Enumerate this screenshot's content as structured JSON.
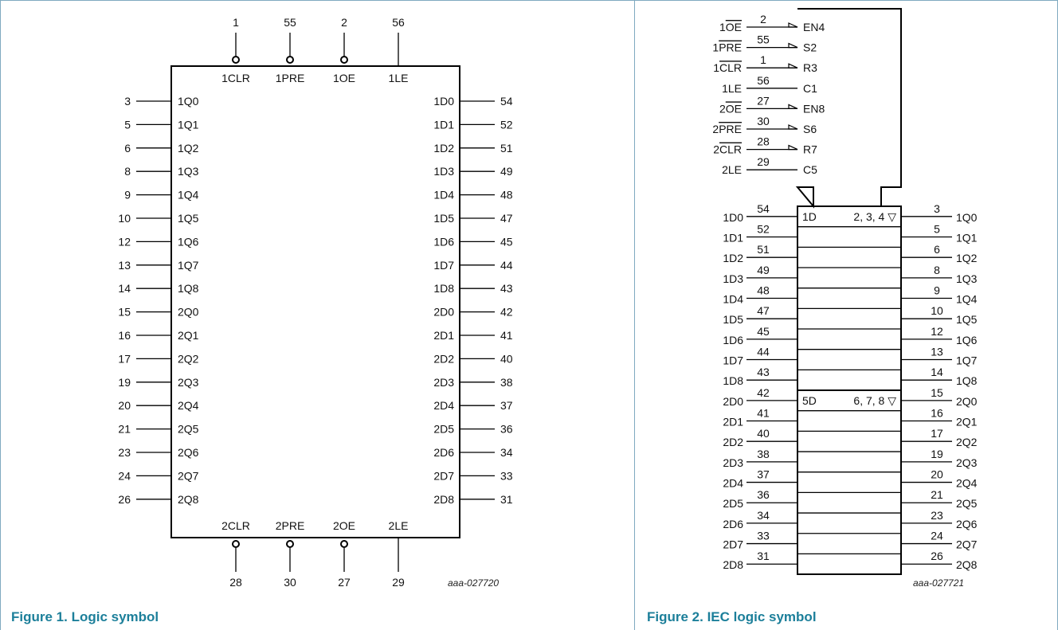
{
  "colors": {
    "caption": "#1c7f9a",
    "frame": "#7fa9c0",
    "line": "#000000"
  },
  "figure1": {
    "caption": "Figure 1.  Logic symbol",
    "code": "aaa-027720",
    "top_pins": [
      {
        "num": "1",
        "label": "1CLR",
        "bubble": true
      },
      {
        "num": "55",
        "label": "1PRE",
        "bubble": true
      },
      {
        "num": "2",
        "label": "1OE",
        "bubble": true
      },
      {
        "num": "56",
        "label": "1LE",
        "bubble": false
      }
    ],
    "bottom_pins": [
      {
        "num": "28",
        "label": "2CLR",
        "bubble": true
      },
      {
        "num": "30",
        "label": "2PRE",
        "bubble": true
      },
      {
        "num": "27",
        "label": "2OE",
        "bubble": true
      },
      {
        "num": "29",
        "label": "2LE",
        "bubble": false
      }
    ],
    "left_pins": [
      {
        "num": "3",
        "label": "1Q0"
      },
      {
        "num": "5",
        "label": "1Q1"
      },
      {
        "num": "6",
        "label": "1Q2"
      },
      {
        "num": "8",
        "label": "1Q3"
      },
      {
        "num": "9",
        "label": "1Q4"
      },
      {
        "num": "10",
        "label": "1Q5"
      },
      {
        "num": "12",
        "label": "1Q6"
      },
      {
        "num": "13",
        "label": "1Q7"
      },
      {
        "num": "14",
        "label": "1Q8"
      },
      {
        "num": "15",
        "label": "2Q0"
      },
      {
        "num": "16",
        "label": "2Q1"
      },
      {
        "num": "17",
        "label": "2Q2"
      },
      {
        "num": "19",
        "label": "2Q3"
      },
      {
        "num": "20",
        "label": "2Q4"
      },
      {
        "num": "21",
        "label": "2Q5"
      },
      {
        "num": "23",
        "label": "2Q6"
      },
      {
        "num": "24",
        "label": "2Q7"
      },
      {
        "num": "26",
        "label": "2Q8"
      }
    ],
    "right_pins": [
      {
        "num": "54",
        "label": "1D0"
      },
      {
        "num": "52",
        "label": "1D1"
      },
      {
        "num": "51",
        "label": "1D2"
      },
      {
        "num": "49",
        "label": "1D3"
      },
      {
        "num": "48",
        "label": "1D4"
      },
      {
        "num": "47",
        "label": "1D5"
      },
      {
        "num": "45",
        "label": "1D6"
      },
      {
        "num": "44",
        "label": "1D7"
      },
      {
        "num": "43",
        "label": "1D8"
      },
      {
        "num": "42",
        "label": "2D0"
      },
      {
        "num": "41",
        "label": "2D1"
      },
      {
        "num": "40",
        "label": "2D2"
      },
      {
        "num": "38",
        "label": "2D3"
      },
      {
        "num": "37",
        "label": "2D4"
      },
      {
        "num": "36",
        "label": "2D5"
      },
      {
        "num": "34",
        "label": "2D6"
      },
      {
        "num": "33",
        "label": "2D7"
      },
      {
        "num": "31",
        "label": "2D8"
      }
    ]
  },
  "figure2": {
    "caption": "Figure 2.  IEC logic symbol",
    "code": "aaa-027721",
    "control_pins": [
      {
        "name": "1",
        "overbar": "OE",
        "num": "2",
        "func": "EN4",
        "triangle": true
      },
      {
        "name": "1",
        "overbar": "PRE",
        "num": "55",
        "func": "S2",
        "triangle": true
      },
      {
        "name": "1",
        "overbar": "CLR",
        "num": "1",
        "func": "R3",
        "triangle": true
      },
      {
        "name": "1LE",
        "overbar": "",
        "num": "56",
        "func": "C1",
        "triangle": false
      },
      {
        "name": "2",
        "overbar": "OE",
        "num": "27",
        "func": "EN8",
        "triangle": true
      },
      {
        "name": "2",
        "overbar": "PRE",
        "num": "30",
        "func": "S6",
        "triangle": true
      },
      {
        "name": "2",
        "overbar": "CLR",
        "num": "28",
        "func": "R7",
        "triangle": true
      },
      {
        "name": "2LE",
        "overbar": "",
        "num": "29",
        "func": "C5",
        "triangle": false
      }
    ],
    "group_labels": [
      {
        "inside_left": "1D",
        "inside_right": "2, 3, 4 ▽"
      },
      {
        "inside_left": "5D",
        "inside_right": "6, 7, 8 ▽"
      }
    ],
    "data_rows": [
      {
        "in_name": "1D0",
        "in_num": "54",
        "out_num": "3",
        "out_name": "1Q0"
      },
      {
        "in_name": "1D1",
        "in_num": "52",
        "out_num": "5",
        "out_name": "1Q1"
      },
      {
        "in_name": "1D2",
        "in_num": "51",
        "out_num": "6",
        "out_name": "1Q2"
      },
      {
        "in_name": "1D3",
        "in_num": "49",
        "out_num": "8",
        "out_name": "1Q3"
      },
      {
        "in_name": "1D4",
        "in_num": "48",
        "out_num": "9",
        "out_name": "1Q4"
      },
      {
        "in_name": "1D5",
        "in_num": "47",
        "out_num": "10",
        "out_name": "1Q5"
      },
      {
        "in_name": "1D6",
        "in_num": "45",
        "out_num": "12",
        "out_name": "1Q6"
      },
      {
        "in_name": "1D7",
        "in_num": "44",
        "out_num": "13",
        "out_name": "1Q7"
      },
      {
        "in_name": "1D8",
        "in_num": "43",
        "out_num": "14",
        "out_name": "1Q8"
      },
      {
        "in_name": "2D0",
        "in_num": "42",
        "out_num": "15",
        "out_name": "2Q0"
      },
      {
        "in_name": "2D1",
        "in_num": "41",
        "out_num": "16",
        "out_name": "2Q1"
      },
      {
        "in_name": "2D2",
        "in_num": "40",
        "out_num": "17",
        "out_name": "2Q2"
      },
      {
        "in_name": "2D3",
        "in_num": "38",
        "out_num": "19",
        "out_name": "2Q3"
      },
      {
        "in_name": "2D4",
        "in_num": "37",
        "out_num": "20",
        "out_name": "2Q4"
      },
      {
        "in_name": "2D5",
        "in_num": "36",
        "out_num": "21",
        "out_name": "2Q5"
      },
      {
        "in_name": "2D6",
        "in_num": "34",
        "out_num": "23",
        "out_name": "2Q6"
      },
      {
        "in_name": "2D7",
        "in_num": "33",
        "out_num": "24",
        "out_name": "2Q7"
      },
      {
        "in_name": "2D8",
        "in_num": "31",
        "out_num": "26",
        "out_name": "2Q8"
      }
    ]
  }
}
